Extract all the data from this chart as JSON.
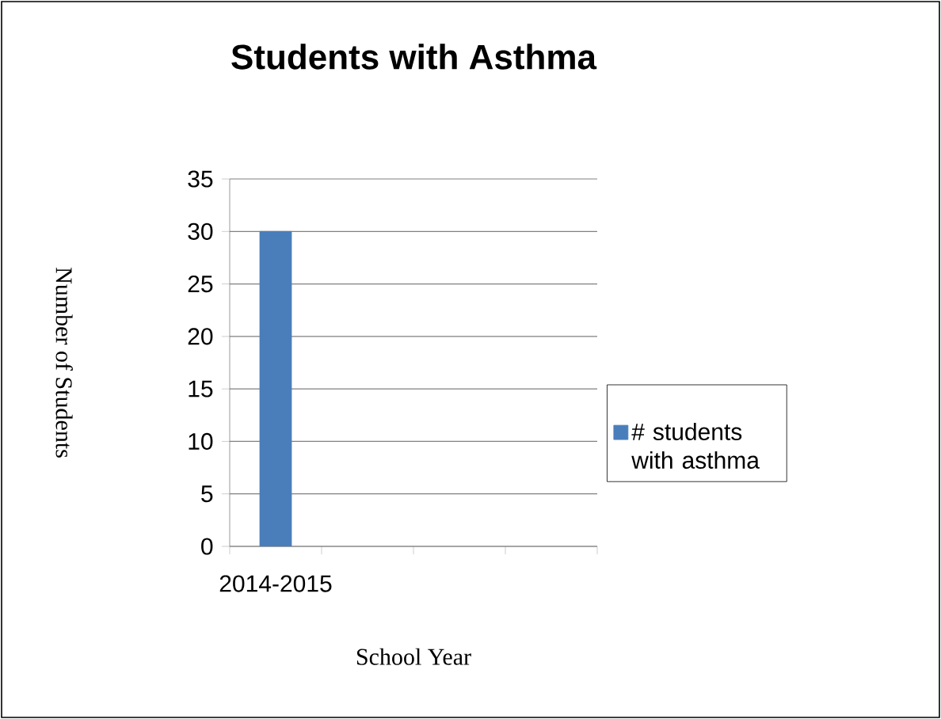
{
  "chart_data": {
    "type": "bar",
    "title": "Students with Asthma",
    "xlabel": "School Year",
    "ylabel": "Number of Students",
    "categories": [
      "2014-2015",
      null,
      null,
      null
    ],
    "series": [
      {
        "name": "# students with asthma",
        "color": "#4a7ebb",
        "values": [
          30,
          null,
          null,
          null
        ]
      }
    ],
    "ylim": [
      0,
      35
    ],
    "yticks": [
      0,
      5,
      10,
      15,
      20,
      25,
      30,
      35
    ],
    "grid": "y",
    "legend": "right"
  }
}
